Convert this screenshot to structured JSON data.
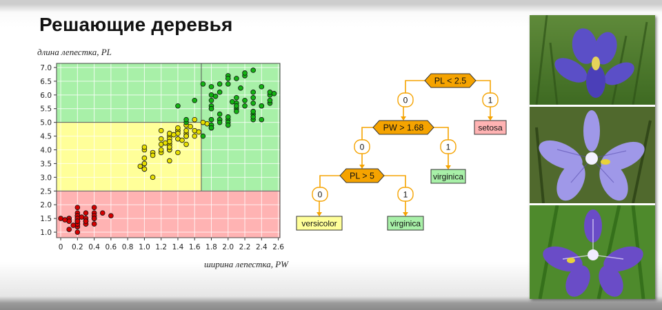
{
  "slide": {
    "title": "Решающие деревья"
  },
  "chart_data": {
    "type": "scatter",
    "xlabel": "ширина лепестка, PW",
    "ylabel": "длина лепестка, PL",
    "xlim": [
      -0.05,
      2.62
    ],
    "ylim": [
      0.8,
      7.15
    ],
    "x_ticks": [
      "0",
      "0.2",
      "0.4",
      "0.6",
      "0.8",
      "1.0",
      "1.2",
      "1.4",
      "1.6",
      "1.8",
      "2.0",
      "2.2",
      "2.4",
      "2.6"
    ],
    "y_ticks": [
      "1.0",
      "1.5",
      "2.0",
      "2.5",
      "3.0",
      "3.5",
      "4.0",
      "4.5",
      "5.0",
      "5.5",
      "6.0",
      "6.5",
      "7.0"
    ],
    "grid": true,
    "regions": [
      {
        "class": "setosa",
        "color": "#ffb3b3",
        "x": [
          -0.05,
          2.62
        ],
        "y": [
          0.8,
          2.5
        ]
      },
      {
        "class": "versicolor",
        "color": "#ffff99",
        "x": [
          -0.05,
          1.68
        ],
        "y": [
          2.5,
          5.0
        ]
      },
      {
        "class": "virginica",
        "color": "#a8f0a8",
        "x": [
          1.68,
          2.62
        ],
        "y": [
          2.5,
          7.15
        ]
      },
      {
        "class": "virginica",
        "color": "#a8f0a8",
        "x": [
          -0.05,
          1.68
        ],
        "y": [
          5.0,
          7.15
        ]
      }
    ],
    "series": [
      {
        "color": "#d40000",
        "points": [
          [
            0.2,
            1.4
          ],
          [
            0.2,
            1.4
          ],
          [
            0.2,
            1.3
          ],
          [
            0.2,
            1.5
          ],
          [
            0.2,
            1.4
          ],
          [
            0.4,
            1.7
          ],
          [
            0.3,
            1.4
          ],
          [
            0.2,
            1.5
          ],
          [
            0.2,
            1.4
          ],
          [
            0.1,
            1.5
          ],
          [
            0.2,
            1.5
          ],
          [
            0.2,
            1.6
          ],
          [
            0.1,
            1.4
          ],
          [
            0.1,
            1.1
          ],
          [
            0.2,
            1.2
          ],
          [
            0.4,
            1.5
          ],
          [
            0.4,
            1.3
          ],
          [
            0.3,
            1.4
          ],
          [
            0.3,
            1.7
          ],
          [
            0.3,
            1.5
          ],
          [
            0.2,
            1.7
          ],
          [
            0.4,
            1.5
          ],
          [
            0.2,
            1.0
          ],
          [
            0.5,
            1.7
          ],
          [
            0.2,
            1.9
          ],
          [
            0.2,
            1.6
          ],
          [
            0.4,
            1.6
          ],
          [
            0.2,
            1.5
          ],
          [
            0.2,
            1.4
          ],
          [
            0.2,
            1.6
          ],
          [
            0.2,
            1.6
          ],
          [
            0.4,
            1.5
          ],
          [
            0.1,
            1.5
          ],
          [
            0.2,
            1.4
          ],
          [
            0.2,
            1.5
          ],
          [
            0.2,
            1.2
          ],
          [
            0.2,
            1.3
          ],
          [
            0.1,
            1.4
          ],
          [
            0.2,
            1.3
          ],
          [
            0.2,
            1.5
          ],
          [
            0.3,
            1.3
          ],
          [
            0.3,
            1.3
          ],
          [
            0.2,
            1.3
          ],
          [
            0.6,
            1.6
          ],
          [
            0.4,
            1.9
          ],
          [
            0.3,
            1.4
          ],
          [
            0.2,
            1.6
          ],
          [
            0.2,
            1.4
          ],
          [
            0.2,
            1.5
          ],
          [
            0.2,
            1.4
          ],
          [
            0.0,
            1.5
          ],
          [
            0.05,
            1.45
          ],
          [
            0.15,
            1.25
          ],
          [
            0.25,
            1.55
          ]
        ]
      },
      {
        "color": "#e8e000",
        "points": [
          [
            1.4,
            4.7
          ],
          [
            1.5,
            4.5
          ],
          [
            1.5,
            4.9
          ],
          [
            1.3,
            4.0
          ],
          [
            1.5,
            4.6
          ],
          [
            1.3,
            4.5
          ],
          [
            1.6,
            4.7
          ],
          [
            1.0,
            3.3
          ],
          [
            1.3,
            4.6
          ],
          [
            1.4,
            3.9
          ],
          [
            1.0,
            3.5
          ],
          [
            1.5,
            4.2
          ],
          [
            1.0,
            4.0
          ],
          [
            1.4,
            4.7
          ],
          [
            1.3,
            3.6
          ],
          [
            1.4,
            4.4
          ],
          [
            1.5,
            4.5
          ],
          [
            1.0,
            4.1
          ],
          [
            1.5,
            4.5
          ],
          [
            1.1,
            3.9
          ],
          [
            1.8,
            4.8
          ],
          [
            1.3,
            4.0
          ],
          [
            1.5,
            4.9
          ],
          [
            1.2,
            4.7
          ],
          [
            1.3,
            4.3
          ],
          [
            1.4,
            4.4
          ],
          [
            1.4,
            4.8
          ],
          [
            1.7,
            5.0
          ],
          [
            1.5,
            4.5
          ],
          [
            1.0,
            3.5
          ],
          [
            1.1,
            3.8
          ],
          [
            1.0,
            3.7
          ],
          [
            1.2,
            3.9
          ],
          [
            1.6,
            5.1
          ],
          [
            1.5,
            4.5
          ],
          [
            1.6,
            4.5
          ],
          [
            1.5,
            4.7
          ],
          [
            1.3,
            4.4
          ],
          [
            1.3,
            4.1
          ],
          [
            1.3,
            4.0
          ],
          [
            1.2,
            4.4
          ],
          [
            1.4,
            4.6
          ],
          [
            1.2,
            4.0
          ],
          [
            1.0,
            3.3
          ],
          [
            1.3,
            4.2
          ],
          [
            1.2,
            4.2
          ],
          [
            1.3,
            4.2
          ],
          [
            1.3,
            4.3
          ],
          [
            1.1,
            3.0
          ],
          [
            1.3,
            4.1
          ],
          [
            0.95,
            3.4
          ],
          [
            1.25,
            4.25
          ],
          [
            1.35,
            4.55
          ],
          [
            1.45,
            4.35
          ],
          [
            1.55,
            4.85
          ],
          [
            1.65,
            4.65
          ],
          [
            1.75,
            4.95
          ],
          [
            1.8,
            5.1
          ]
        ]
      },
      {
        "color": "#13b313",
        "points": [
          [
            2.5,
            6.0
          ],
          [
            1.9,
            5.1
          ],
          [
            2.1,
            5.9
          ],
          [
            1.8,
            5.6
          ],
          [
            2.2,
            5.8
          ],
          [
            2.1,
            6.6
          ],
          [
            1.7,
            4.5
          ],
          [
            1.8,
            6.3
          ],
          [
            1.8,
            5.8
          ],
          [
            2.5,
            6.1
          ],
          [
            2.0,
            5.1
          ],
          [
            1.9,
            5.3
          ],
          [
            2.1,
            5.5
          ],
          [
            2.0,
            5.0
          ],
          [
            2.4,
            5.1
          ],
          [
            2.3,
            5.3
          ],
          [
            1.8,
            5.5
          ],
          [
            2.2,
            6.7
          ],
          [
            2.3,
            6.9
          ],
          [
            1.5,
            5.0
          ],
          [
            2.3,
            5.7
          ],
          [
            2.0,
            4.9
          ],
          [
            2.0,
            6.7
          ],
          [
            1.8,
            4.9
          ],
          [
            2.1,
            5.7
          ],
          [
            1.8,
            6.0
          ],
          [
            1.8,
            4.8
          ],
          [
            1.8,
            4.9
          ],
          [
            2.1,
            5.6
          ],
          [
            1.6,
            5.8
          ],
          [
            1.9,
            6.1
          ],
          [
            2.0,
            6.4
          ],
          [
            2.2,
            5.6
          ],
          [
            1.5,
            5.1
          ],
          [
            1.4,
            5.6
          ],
          [
            2.3,
            6.1
          ],
          [
            2.4,
            5.6
          ],
          [
            1.8,
            5.5
          ],
          [
            1.8,
            4.8
          ],
          [
            2.1,
            5.4
          ],
          [
            2.4,
            5.6
          ],
          [
            2.3,
            5.1
          ],
          [
            1.9,
            5.1
          ],
          [
            2.3,
            5.9
          ],
          [
            2.5,
            5.7
          ],
          [
            2.3,
            5.2
          ],
          [
            1.9,
            5.0
          ],
          [
            2.0,
            5.2
          ],
          [
            2.3,
            5.4
          ],
          [
            1.8,
            5.1
          ],
          [
            1.7,
            6.4
          ],
          [
            1.9,
            6.4
          ],
          [
            2.0,
            6.6
          ],
          [
            2.2,
            6.8
          ],
          [
            2.5,
            5.8
          ],
          [
            2.4,
            6.3
          ],
          [
            2.55,
            6.05
          ],
          [
            1.85,
            5.95
          ],
          [
            2.05,
            5.75
          ],
          [
            2.15,
            6.25
          ]
        ]
      }
    ]
  },
  "tree": {
    "nodes": [
      {
        "label": "PL < 2.5",
        "kind": "split"
      },
      {
        "label": "0",
        "kind": "edge"
      },
      {
        "label": "1",
        "kind": "edge"
      },
      {
        "label": "setosa",
        "kind": "leaf",
        "color": "#ffb3b3"
      },
      {
        "label": "PW > 1.68",
        "kind": "split"
      },
      {
        "label": "0",
        "kind": "edge"
      },
      {
        "label": "1",
        "kind": "edge"
      },
      {
        "label": "virginica",
        "kind": "leaf",
        "color": "#a8f0a8"
      },
      {
        "label": "PL > 5",
        "kind": "split"
      },
      {
        "label": "0",
        "kind": "edge"
      },
      {
        "label": "1",
        "kind": "edge"
      },
      {
        "label": "versicolor",
        "kind": "leaf",
        "color": "#ffff99"
      },
      {
        "label": "virginica",
        "kind": "leaf",
        "color": "#a8f0a8"
      }
    ],
    "split_color": "#f5a300",
    "edge_color": "#f5a300"
  },
  "photos": [
    {
      "subject": "iris-setosa"
    },
    {
      "subject": "iris-versicolor"
    },
    {
      "subject": "iris-virginica"
    }
  ]
}
